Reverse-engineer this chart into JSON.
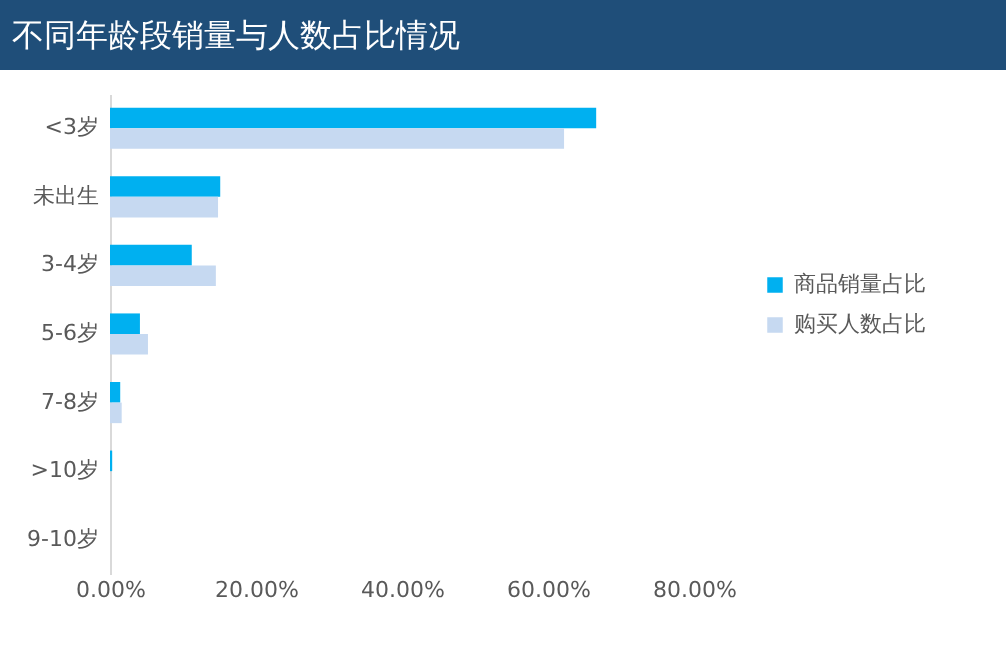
{
  "chart_data": {
    "type": "bar",
    "orientation": "horizontal",
    "title": "不同年龄段销量与人数占比情况",
    "categories": [
      "<3岁",
      "未出生",
      "3-4岁",
      "5-6岁",
      "7-8岁",
      ">10岁",
      "9-10岁"
    ],
    "series": [
      {
        "name": "商品销量占比",
        "color": "#00b0f0",
        "values": [
          66.6,
          15.1,
          11.2,
          4.1,
          1.4,
          0.3,
          null
        ]
      },
      {
        "name": "购买人数占比",
        "color": "#c6d9f1",
        "values": [
          62.2,
          14.8,
          14.5,
          5.2,
          1.6,
          null,
          null
        ]
      }
    ],
    "xlim": [
      0,
      80
    ],
    "xticks": [
      {
        "value": 0,
        "label": "0.00%"
      },
      {
        "value": 20,
        "label": "20.00%"
      },
      {
        "value": 40,
        "label": "40.00%"
      },
      {
        "value": 60,
        "label": "60.00%"
      },
      {
        "value": 80,
        "label": "80.00%"
      }
    ],
    "legend": "right",
    "grid": false
  }
}
